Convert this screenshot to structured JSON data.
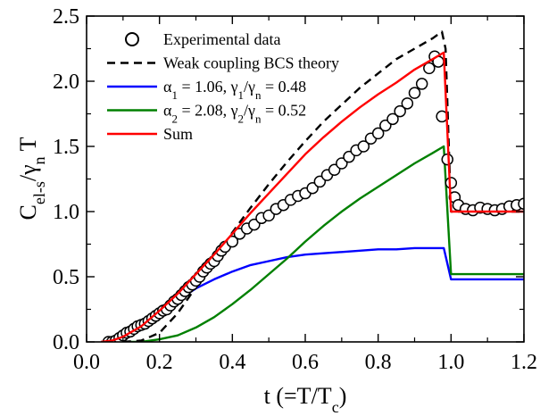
{
  "chart_data": {
    "type": "line",
    "xlabel": "t (=T/T_c)",
    "ylabel": "C_el-s/γ_n T",
    "xlim": [
      0.0,
      1.2
    ],
    "ylim": [
      0.0,
      2.5
    ],
    "xticks": [
      "0.0",
      "0.2",
      "0.4",
      "0.6",
      "0.8",
      "1.0",
      "1.2"
    ],
    "yticks": [
      "0.0",
      "0.5",
      "1.0",
      "1.5",
      "2.0",
      "2.5"
    ],
    "legend_position": "top-left",
    "series": [
      {
        "name": "Experimental data",
        "style": "open-circle",
        "color": "#000000",
        "points": [
          [
            0.06,
            0.0
          ],
          [
            0.07,
            0.0
          ],
          [
            0.08,
            0.01
          ],
          [
            0.09,
            0.03
          ],
          [
            0.1,
            0.05
          ],
          [
            0.11,
            0.07
          ],
          [
            0.12,
            0.08
          ],
          [
            0.13,
            0.1
          ],
          [
            0.14,
            0.12
          ],
          [
            0.15,
            0.13
          ],
          [
            0.16,
            0.14
          ],
          [
            0.17,
            0.16
          ],
          [
            0.18,
            0.18
          ],
          [
            0.19,
            0.2
          ],
          [
            0.2,
            0.22
          ],
          [
            0.21,
            0.24
          ],
          [
            0.22,
            0.25
          ],
          [
            0.23,
            0.28
          ],
          [
            0.24,
            0.31
          ],
          [
            0.25,
            0.33
          ],
          [
            0.26,
            0.36
          ],
          [
            0.27,
            0.39
          ],
          [
            0.28,
            0.42
          ],
          [
            0.29,
            0.44
          ],
          [
            0.3,
            0.47
          ],
          [
            0.31,
            0.5
          ],
          [
            0.32,
            0.54
          ],
          [
            0.33,
            0.57
          ],
          [
            0.34,
            0.6
          ],
          [
            0.35,
            0.62
          ],
          [
            0.36,
            0.66
          ],
          [
            0.37,
            0.7
          ],
          [
            0.38,
            0.73
          ],
          [
            0.4,
            0.77
          ],
          [
            0.42,
            0.83
          ],
          [
            0.44,
            0.87
          ],
          [
            0.46,
            0.9
          ],
          [
            0.48,
            0.95
          ],
          [
            0.5,
            0.97
          ],
          [
            0.52,
            1.02
          ],
          [
            0.54,
            1.05
          ],
          [
            0.56,
            1.09
          ],
          [
            0.58,
            1.12
          ],
          [
            0.6,
            1.14
          ],
          [
            0.62,
            1.18
          ],
          [
            0.64,
            1.23
          ],
          [
            0.66,
            1.28
          ],
          [
            0.68,
            1.32
          ],
          [
            0.7,
            1.37
          ],
          [
            0.72,
            1.42
          ],
          [
            0.74,
            1.47
          ],
          [
            0.76,
            1.5
          ],
          [
            0.78,
            1.56
          ],
          [
            0.8,
            1.6
          ],
          [
            0.82,
            1.66
          ],
          [
            0.84,
            1.71
          ],
          [
            0.86,
            1.77
          ],
          [
            0.88,
            1.83
          ],
          [
            0.9,
            1.91
          ],
          [
            0.92,
            1.98
          ],
          [
            0.94,
            2.1
          ],
          [
            0.955,
            2.19
          ],
          [
            0.965,
            2.15
          ],
          [
            0.975,
            1.73
          ],
          [
            0.99,
            1.4
          ],
          [
            1.0,
            1.22
          ],
          [
            1.01,
            1.11
          ],
          [
            1.02,
            1.05
          ],
          [
            1.04,
            1.02
          ],
          [
            1.06,
            1.01
          ],
          [
            1.08,
            1.03
          ],
          [
            1.1,
            1.02
          ],
          [
            1.12,
            1.01
          ],
          [
            1.14,
            1.02
          ],
          [
            1.16,
            1.04
          ],
          [
            1.18,
            1.05
          ],
          [
            1.2,
            1.06
          ]
        ]
      },
      {
        "name": "Weak coupling BCS theory",
        "style": "dashed",
        "color": "#000000",
        "points": [
          [
            0.1,
            0.0
          ],
          [
            0.15,
            0.01
          ],
          [
            0.2,
            0.07
          ],
          [
            0.25,
            0.22
          ],
          [
            0.3,
            0.42
          ],
          [
            0.35,
            0.63
          ],
          [
            0.4,
            0.84
          ],
          [
            0.45,
            1.03
          ],
          [
            0.5,
            1.21
          ],
          [
            0.55,
            1.38
          ],
          [
            0.6,
            1.54
          ],
          [
            0.65,
            1.69
          ],
          [
            0.7,
            1.82
          ],
          [
            0.75,
            1.95
          ],
          [
            0.8,
            2.06
          ],
          [
            0.85,
            2.17
          ],
          [
            0.9,
            2.25
          ],
          [
            0.95,
            2.33
          ],
          [
            0.975,
            2.38
          ],
          [
            0.985,
            2.25
          ],
          [
            1.0,
            1.0
          ],
          [
            1.2,
            1.0
          ]
        ]
      },
      {
        "name": "α_1 = 1.06,  γ_1/γ_n = 0.48",
        "style": "solid",
        "color": "#0000ff",
        "points": [
          [
            0.04,
            0.0
          ],
          [
            0.07,
            0.01
          ],
          [
            0.1,
            0.04
          ],
          [
            0.15,
            0.12
          ],
          [
            0.2,
            0.22
          ],
          [
            0.25,
            0.32
          ],
          [
            0.3,
            0.41
          ],
          [
            0.35,
            0.48
          ],
          [
            0.4,
            0.54
          ],
          [
            0.45,
            0.59
          ],
          [
            0.5,
            0.62
          ],
          [
            0.55,
            0.65
          ],
          [
            0.6,
            0.67
          ],
          [
            0.65,
            0.68
          ],
          [
            0.7,
            0.69
          ],
          [
            0.75,
            0.7
          ],
          [
            0.8,
            0.71
          ],
          [
            0.85,
            0.71
          ],
          [
            0.9,
            0.72
          ],
          [
            0.95,
            0.72
          ],
          [
            0.98,
            0.72
          ],
          [
            1.0,
            0.48
          ],
          [
            1.2,
            0.48
          ]
        ]
      },
      {
        "name": "α_2 = 2.08,  γ_2/γ_n = 0.52",
        "style": "solid",
        "color": "#008000",
        "points": [
          [
            0.04,
            0.0
          ],
          [
            0.1,
            0.0
          ],
          [
            0.15,
            0.0
          ],
          [
            0.2,
            0.02
          ],
          [
            0.25,
            0.05
          ],
          [
            0.3,
            0.11
          ],
          [
            0.35,
            0.19
          ],
          [
            0.4,
            0.29
          ],
          [
            0.45,
            0.4
          ],
          [
            0.5,
            0.52
          ],
          [
            0.55,
            0.64
          ],
          [
            0.6,
            0.77
          ],
          [
            0.65,
            0.89
          ],
          [
            0.7,
            1.0
          ],
          [
            0.75,
            1.1
          ],
          [
            0.8,
            1.19
          ],
          [
            0.85,
            1.28
          ],
          [
            0.9,
            1.37
          ],
          [
            0.95,
            1.45
          ],
          [
            0.98,
            1.5
          ],
          [
            1.0,
            0.52
          ],
          [
            1.2,
            0.52
          ]
        ]
      },
      {
        "name": "Sum",
        "style": "solid",
        "color": "#ff0000",
        "points": [
          [
            0.04,
            0.0
          ],
          [
            0.07,
            0.01
          ],
          [
            0.1,
            0.04
          ],
          [
            0.15,
            0.12
          ],
          [
            0.2,
            0.24
          ],
          [
            0.25,
            0.37
          ],
          [
            0.3,
            0.52
          ],
          [
            0.35,
            0.67
          ],
          [
            0.4,
            0.83
          ],
          [
            0.45,
            0.99
          ],
          [
            0.5,
            1.14
          ],
          [
            0.55,
            1.29
          ],
          [
            0.6,
            1.44
          ],
          [
            0.65,
            1.57
          ],
          [
            0.7,
            1.69
          ],
          [
            0.75,
            1.8
          ],
          [
            0.8,
            1.9
          ],
          [
            0.85,
            1.99
          ],
          [
            0.9,
            2.09
          ],
          [
            0.95,
            2.17
          ],
          [
            0.98,
            2.22
          ],
          [
            1.0,
            1.0
          ],
          [
            1.2,
            1.0
          ]
        ]
      }
    ]
  }
}
